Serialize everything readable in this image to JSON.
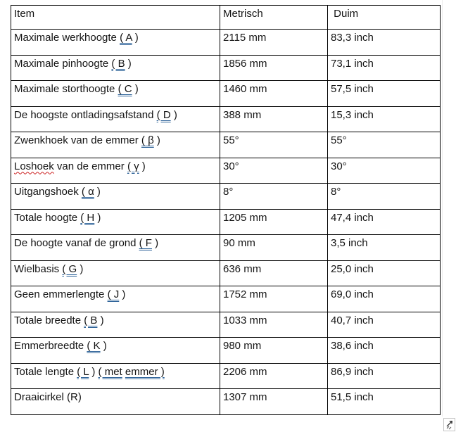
{
  "colors": {
    "border": "#000000",
    "text": "#141414",
    "underline_blue": "#2e6399",
    "squiggle_red": "#cc2222",
    "boundary_gray": "#ececec",
    "handle_gray": "#c4c4c4"
  },
  "table": {
    "headers": {
      "item": "Item",
      "metric": "Metrisch",
      "duim": " Duim"
    },
    "rows": [
      {
        "item": [
          {
            "t": "Maximale werkhoogte ",
            "s": "p"
          },
          {
            "t": "( A",
            "s": "b"
          },
          {
            "t": " )",
            "s": "p"
          }
        ],
        "metric": "2115 mm",
        "duim": "83,3 inch"
      },
      {
        "item": [
          {
            "t": "Maximale pinhoogte ",
            "s": "p"
          },
          {
            "t": "( B",
            "s": "b"
          },
          {
            "t": " )",
            "s": "p"
          }
        ],
        "metric": "1856 mm",
        "duim": "73,1 inch"
      },
      {
        "item": [
          {
            "t": "Maximale storthoogte ",
            "s": "p"
          },
          {
            "t": "( C",
            "s": "b"
          },
          {
            "t": " )",
            "s": "p"
          }
        ],
        "metric": "1460 mm",
        "duim": "57,5 inch"
      },
      {
        "item": [
          {
            "t": "De hoogste ontladingsafstand ",
            "s": "p"
          },
          {
            "t": "( D",
            "s": "b"
          },
          {
            "t": " )",
            "s": "p"
          }
        ],
        "metric": "388 mm",
        "duim": "15,3 inch"
      },
      {
        "item": [
          {
            "t": "Zwenkhoek van de emmer ",
            "s": "p"
          },
          {
            "t": "( β",
            "s": "b"
          },
          {
            "t": " )",
            "s": "p"
          }
        ],
        "metric": "55°",
        "duim": "55°"
      },
      {
        "item": [
          {
            "t": "Loshoek",
            "s": "r"
          },
          {
            "t": " van de emmer ",
            "s": "p"
          },
          {
            "t": "( γ",
            "s": "b"
          },
          {
            "t": " )",
            "s": "p"
          }
        ],
        "metric": "30°",
        "duim": "30°"
      },
      {
        "item": [
          {
            "t": "Uitgangshoek ",
            "s": "p"
          },
          {
            "t": "( α",
            "s": "b"
          },
          {
            "t": " )",
            "s": "p"
          }
        ],
        "metric": "8°",
        "duim": "8°"
      },
      {
        "item": [
          {
            "t": "Totale hoogte ",
            "s": "p"
          },
          {
            "t": "( H",
            "s": "b"
          },
          {
            "t": " )",
            "s": "p"
          }
        ],
        "metric": "1205 mm",
        "duim": "47,4 inch"
      },
      {
        "item": [
          {
            "t": "De hoogte vanaf de grond ",
            "s": "p"
          },
          {
            "t": "( F",
            "s": "b"
          },
          {
            "t": " )",
            "s": "p"
          }
        ],
        "metric": "90 mm",
        "duim": "3,5 inch"
      },
      {
        "item": [
          {
            "t": "Wielbasis ",
            "s": "p"
          },
          {
            "t": "( G",
            "s": "b"
          },
          {
            "t": " )",
            "s": "p"
          }
        ],
        "metric": "636 mm",
        "duim": "25,0 inch"
      },
      {
        "item": [
          {
            "t": "Geen emmerlengte ",
            "s": "p"
          },
          {
            "t": "( J",
            "s": "b"
          },
          {
            "t": " )",
            "s": "p"
          }
        ],
        "metric": "1752 mm",
        "duim": "69,0 inch"
      },
      {
        "item": [
          {
            "t": "Totale breedte ",
            "s": "p"
          },
          {
            "t": "( B",
            "s": "b"
          },
          {
            "t": " )",
            "s": "p"
          }
        ],
        "metric": "1033 mm",
        "duim": "40,7 inch"
      },
      {
        "item": [
          {
            "t": "Emmerbreedte ",
            "s": "p"
          },
          {
            "t": "( K",
            "s": "b"
          },
          {
            "t": " )",
            "s": "p"
          }
        ],
        "metric": "980 mm",
        "duim": "38,6 inch"
      },
      {
        "item": [
          {
            "t": "Totale lengte ",
            "s": "p"
          },
          {
            "t": "( L",
            "s": "b"
          },
          {
            "t": " ) ",
            "s": "p"
          },
          {
            "t": "( met",
            "s": "b"
          },
          {
            "t": " ",
            "s": "p"
          },
          {
            "t": "emmer )",
            "s": "b"
          }
        ],
        "metric": "2206 mm",
        "duim": "86,9 inch"
      },
      {
        "item": [
          {
            "t": "Draaicirkel (R)",
            "s": "p"
          }
        ],
        "metric": "1307 mm",
        "duim": "51,5 inch"
      }
    ]
  }
}
